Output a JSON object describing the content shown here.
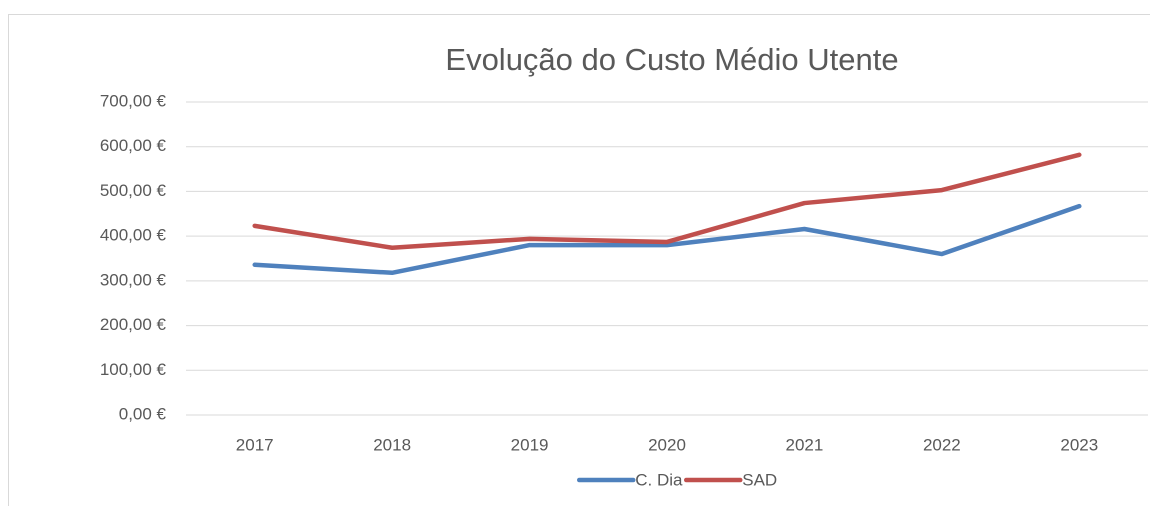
{
  "chart_data": {
    "type": "line",
    "title": "Evolução do Custo Médio Utente",
    "categories": [
      "2017",
      "2018",
      "2019",
      "2020",
      "2021",
      "2022",
      "2023"
    ],
    "series": [
      {
        "name": "C. Dia",
        "color": "#4f81bd",
        "values": [
          336,
          318,
          380,
          380,
          416,
          360,
          467
        ]
      },
      {
        "name": "SAD",
        "color": "#c0504d",
        "values": [
          423,
          374,
          394,
          387,
          474,
          503,
          582
        ]
      }
    ],
    "ylim": [
      0,
      700
    ],
    "yticks": [
      {
        "value": 0,
        "label": "0,00 €"
      },
      {
        "value": 100,
        "label": "100,00 €"
      },
      {
        "value": 200,
        "label": "200,00 €"
      },
      {
        "value": 300,
        "label": "300,00 €"
      },
      {
        "value": 400,
        "label": "400,00 €"
      },
      {
        "value": 500,
        "label": "500,00 €"
      },
      {
        "value": 600,
        "label": "600,00 €"
      },
      {
        "value": 700,
        "label": "700,00 €"
      }
    ],
    "grid": true,
    "legend": "bottom"
  }
}
